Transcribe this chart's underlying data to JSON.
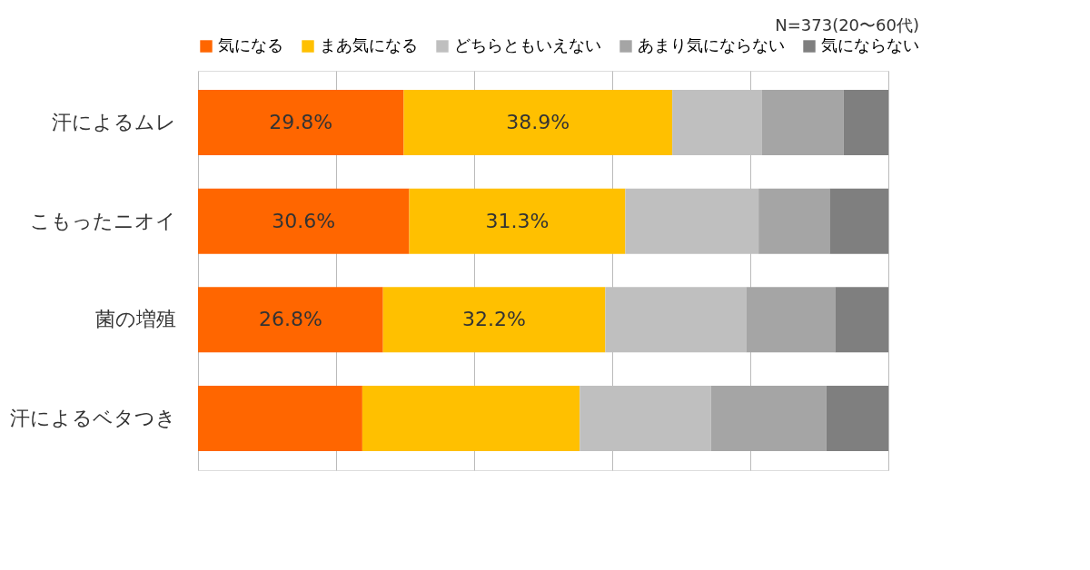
{
  "chart_data": {
    "type": "bar",
    "orientation": "horizontal",
    "stacked": true,
    "annotations": [
      "N=373(20〜60代)"
    ],
    "categories": [
      "汗によるムレ",
      "こもったニオイ",
      "菌の増殖",
      "汗によるベタつき"
    ],
    "series": [
      {
        "name": "気になる",
        "color": "#ff6600",
        "values": [
          29.8,
          30.6,
          26.8,
          23.8
        ],
        "value_labels": [
          "29.8%",
          "30.6%",
          "26.8%",
          null
        ]
      },
      {
        "name": "まあ気になる",
        "color": "#ffc000",
        "values": [
          38.9,
          31.3,
          32.2,
          31.5
        ],
        "value_labels": [
          "38.9%",
          "31.3%",
          "32.2%",
          null
        ]
      },
      {
        "name": "どちらともいえない",
        "color": "#bfbfbf",
        "values": [
          13.0,
          19.3,
          20.4,
          19.0
        ]
      },
      {
        "name": "あまり気にならない",
        "color": "#a5a5a5",
        "values": [
          11.8,
          10.3,
          12.9,
          16.7
        ]
      },
      {
        "name": "気にならない",
        "color": "#7f7f7f",
        "values": [
          6.5,
          8.5,
          7.7,
          9.0
        ]
      }
    ],
    "xlim": [
      0,
      100
    ],
    "xticks": [
      {
        "value": 0,
        "label": null
      },
      {
        "value": 20,
        "label": null
      },
      {
        "value": 40,
        "label": null
      },
      {
        "value": 60,
        "label": null
      },
      {
        "value": 80,
        "label": null
      },
      {
        "value": 100,
        "label": null
      }
    ],
    "grid": "x",
    "legend": "top",
    "tick_labels": "y"
  }
}
